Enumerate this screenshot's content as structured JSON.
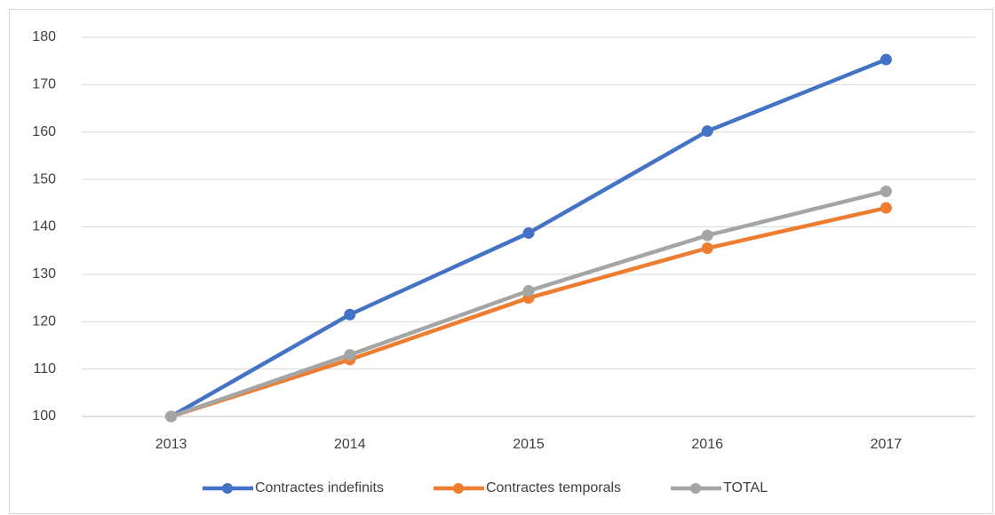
{
  "chart_data": {
    "type": "line",
    "categories": [
      "2013",
      "2014",
      "2015",
      "2016",
      "2017"
    ],
    "series": [
      {
        "name": "Contractes indefinits",
        "color": "#4472c4",
        "values": [
          100,
          121.5,
          138.7,
          160.2,
          175.3
        ]
      },
      {
        "name": "Contractes temporals",
        "color": "#ed7d31",
        "values": [
          100,
          112,
          125,
          135.5,
          144
        ]
      },
      {
        "name": "TOTAL",
        "color": "#a5a5a5",
        "values": [
          100,
          113,
          126.5,
          138.2,
          147.5
        ]
      }
    ],
    "ylim": [
      100,
      180
    ],
    "yticks": [
      100,
      110,
      120,
      130,
      140,
      150,
      160,
      170,
      180
    ],
    "grid": true,
    "legend": "bottom"
  }
}
